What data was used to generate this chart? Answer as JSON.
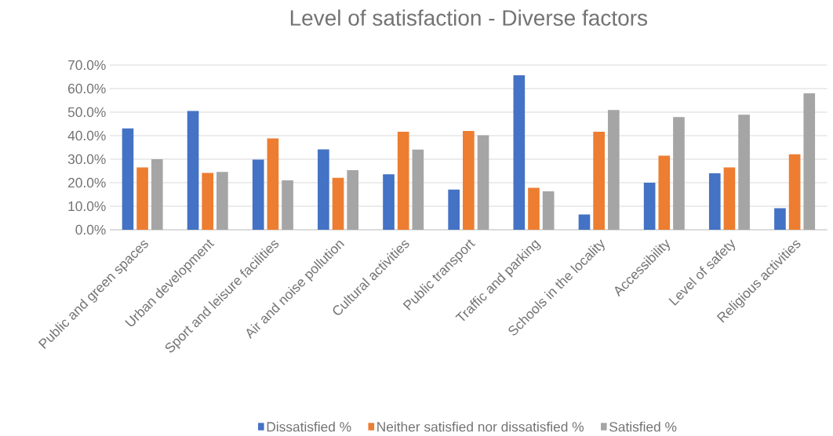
{
  "chart_data": {
    "type": "bar",
    "title": "Level of satisfaction - Diverse factors",
    "categories": [
      "Public and green spaces",
      "Urban development",
      "Sport and leisure facilities",
      "Air and noise pollution",
      "Cultural activities",
      "Public transport",
      "Traffic and parking",
      "Schools in the locality",
      "Accessibility",
      "Level of safety",
      "Religious activities"
    ],
    "series": [
      {
        "name": "Dissatisfied %",
        "color": "#4472c4",
        "values": [
          43.1,
          50.5,
          29.8,
          34.2,
          23.6,
          17.1,
          65.7,
          6.5,
          20.0,
          24.0,
          9.2
        ]
      },
      {
        "name": "Neither satisfied nor dissatisfied %",
        "color": "#ed7d31",
        "values": [
          26.5,
          24.2,
          38.8,
          22.1,
          41.7,
          42.0,
          17.8,
          41.7,
          31.5,
          26.5,
          32.1
        ]
      },
      {
        "name": "Satisfied %",
        "color": "#a5a5a5",
        "values": [
          30.0,
          24.6,
          21.0,
          25.3,
          34.1,
          40.2,
          16.3,
          50.9,
          47.9,
          48.9,
          58.0
        ]
      }
    ],
    "ylim": [
      0,
      70
    ],
    "yticks": [
      {
        "value": 0,
        "label": "0.0%"
      },
      {
        "value": 10,
        "label": "10.0%"
      },
      {
        "value": 20,
        "label": "20.0%"
      },
      {
        "value": 30,
        "label": "30.0%"
      },
      {
        "value": 40,
        "label": "40.0%"
      },
      {
        "value": 50,
        "label": "50.0%"
      },
      {
        "value": 60,
        "label": "60.0%"
      },
      {
        "value": 70,
        "label": "70.0%"
      }
    ],
    "grid": "y",
    "legend": "bottom"
  }
}
